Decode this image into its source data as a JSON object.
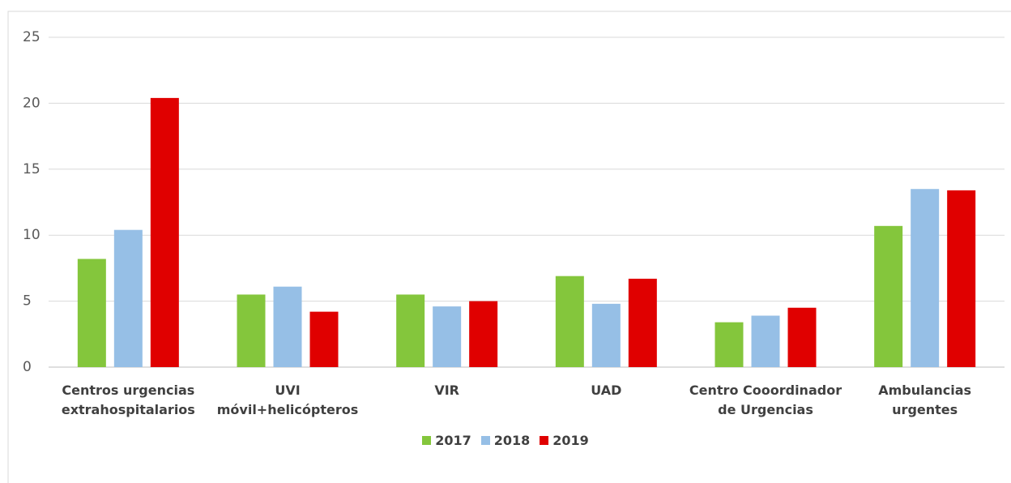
{
  "chart_data": {
    "type": "bar",
    "categories": [
      "Centros urgencias extrahospitalarios",
      "UVI móvil+helicópteros",
      "VIR",
      "UAD",
      "Centro Cooordinador de Urgencias",
      "Ambulancias urgentes"
    ],
    "series": [
      {
        "name": "2017",
        "color": "#84c63c",
        "values": [
          8.2,
          5.5,
          5.5,
          6.9,
          3.4,
          10.7
        ]
      },
      {
        "name": "2018",
        "color": "#96bfe6",
        "values": [
          10.4,
          6.1,
          4.6,
          4.8,
          3.9,
          13.5
        ]
      },
      {
        "name": "2019",
        "color": "#e00000",
        "values": [
          20.4,
          4.2,
          5.0,
          6.7,
          4.5,
          13.4
        ]
      }
    ],
    "ylim": [
      0,
      25
    ],
    "yticks": [
      0,
      5,
      10,
      15,
      20,
      25
    ],
    "grid": true,
    "legend": "bottom"
  }
}
